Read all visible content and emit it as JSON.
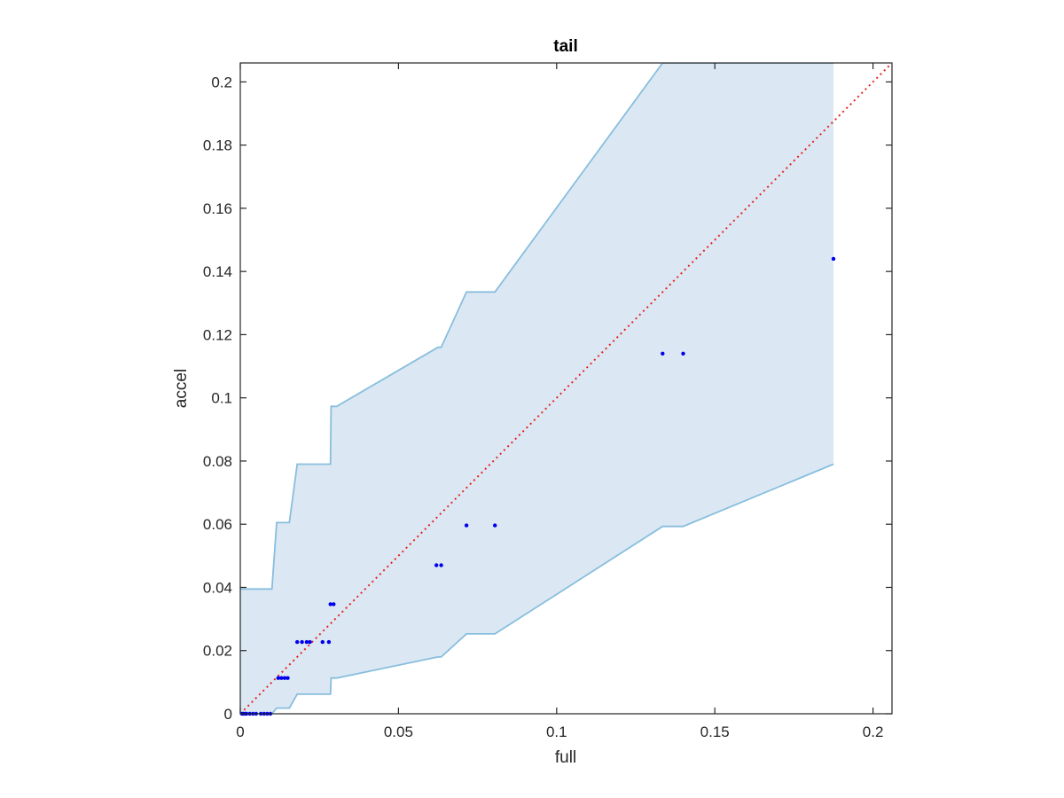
{
  "chart_data": {
    "type": "scatter",
    "title": "tail",
    "xlabel": "full",
    "ylabel": "accel",
    "xlim": [
      0,
      0.206
    ],
    "ylim": [
      0,
      0.206
    ],
    "xticks": [
      0,
      0.05,
      0.1,
      0.15,
      0.2
    ],
    "xtick_labels": [
      "0",
      "0.05",
      "0.1",
      "0.15",
      "0.2"
    ],
    "yticks": [
      0,
      0.02,
      0.04,
      0.06,
      0.08,
      0.1,
      0.12,
      0.14,
      0.16,
      0.18,
      0.2
    ],
    "ytick_labels": [
      "0",
      "0.02",
      "0.04",
      "0.06",
      "0.08",
      "0.1",
      "0.12",
      "0.14",
      "0.16",
      "0.18",
      "0.2"
    ],
    "grid": false,
    "colors": {
      "points": "#0000ee",
      "band_fill": "#dbe8f4",
      "band_edge": "#88bedd",
      "reference_line": "#e8231f",
      "axes": "#262626"
    },
    "points": {
      "x": [
        0.0005,
        0.001,
        0.0015,
        0.002,
        0.003,
        0.004,
        0.005,
        0.0065,
        0.0075,
        0.0085,
        0.0095,
        0.012,
        0.013,
        0.014,
        0.015,
        0.018,
        0.0195,
        0.021,
        0.022,
        0.026,
        0.028,
        0.0285,
        0.0295,
        0.062,
        0.0635,
        0.0715,
        0.0805,
        0.1335,
        0.14,
        0.1875
      ],
      "y": [
        0,
        0,
        0,
        0,
        0,
        0,
        0,
        0,
        0,
        0,
        0,
        0.0113,
        0.0113,
        0.0113,
        0.0113,
        0.0227,
        0.0227,
        0.0227,
        0.0227,
        0.0227,
        0.0227,
        0.0347,
        0.0347,
        0.047,
        0.047,
        0.0596,
        0.0596,
        0.114,
        0.114,
        0.144
      ]
    },
    "band_upper": {
      "x": [
        0,
        0.001,
        0.01,
        0.0115,
        0.0155,
        0.018,
        0.0285,
        0.0287,
        0.0305,
        0.0625,
        0.0635,
        0.0715,
        0.0805,
        0.1335,
        0.1875
      ],
      "y": [
        0.0395,
        0.0395,
        0.0395,
        0.0605,
        0.0605,
        0.079,
        0.079,
        0.0973,
        0.0973,
        0.116,
        0.116,
        0.1335,
        0.1335,
        0.206,
        0.206
      ]
    },
    "band_lower": {
      "x": [
        0,
        0.01,
        0.0115,
        0.0155,
        0.018,
        0.0285,
        0.0287,
        0.0305,
        0.0625,
        0.0635,
        0.0715,
        0.0805,
        0.1335,
        0.14,
        0.1875
      ],
      "y": [
        0,
        0,
        0.0018,
        0.0018,
        0.0062,
        0.0062,
        0.0113,
        0.0113,
        0.018,
        0.018,
        0.0253,
        0.0253,
        0.0593,
        0.0593,
        0.079
      ]
    },
    "reference_line": {
      "x": [
        0,
        0.206
      ],
      "y": [
        0,
        0.206
      ]
    }
  }
}
